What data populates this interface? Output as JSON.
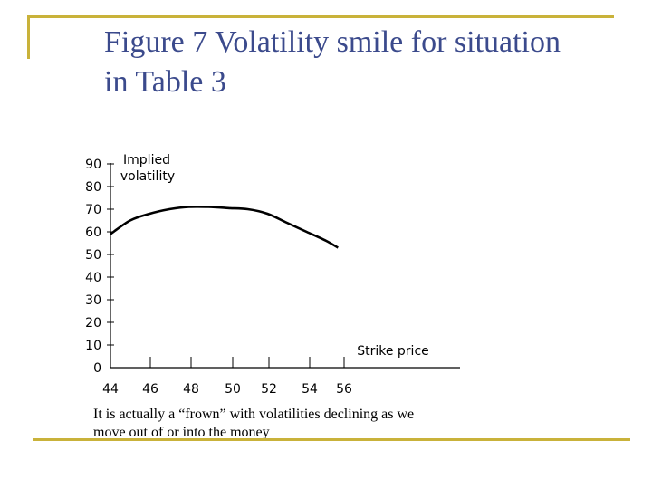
{
  "slide": {
    "title_lines": [
      "Figure 7 Volatility smile for  situation",
      "in Table 3"
    ],
    "caption_lines": [
      "It is actually a “frown” with volatilities declining as we",
      "move out of or into the money"
    ],
    "frame_color": "#c9b23a",
    "title_color": "#3b4a8c"
  },
  "chart_data": {
    "type": "line",
    "title": "",
    "ylabel_lines": [
      "Implied",
      "volatility"
    ],
    "xlabel": "Strike price",
    "x_ticks": [
      "44",
      "46",
      "48",
      "50",
      "52",
      "54",
      "56"
    ],
    "y_ticks": [
      "0",
      "10",
      "20",
      "30",
      "40",
      "50",
      "60",
      "70",
      "80",
      "90"
    ],
    "ylim": [
      0,
      90
    ],
    "xlim": [
      44,
      56
    ],
    "grid": false,
    "series": [
      {
        "values": [
          {
            "x": 44.0,
            "y": 59
          },
          {
            "x": 45.0,
            "y": 65
          },
          {
            "x": 46.0,
            "y": 68
          },
          {
            "x": 47.0,
            "y": 70
          },
          {
            "x": 48.0,
            "y": 71
          },
          {
            "x": 49.0,
            "y": 71
          },
          {
            "x": 50.0,
            "y": 70.5
          },
          {
            "x": 51.0,
            "y": 70
          },
          {
            "x": 52.0,
            "y": 68
          },
          {
            "x": 53.0,
            "y": 64
          },
          {
            "x": 54.0,
            "y": 60
          },
          {
            "x": 55.0,
            "y": 56
          },
          {
            "x": 55.6,
            "y": 53
          }
        ]
      }
    ]
  }
}
